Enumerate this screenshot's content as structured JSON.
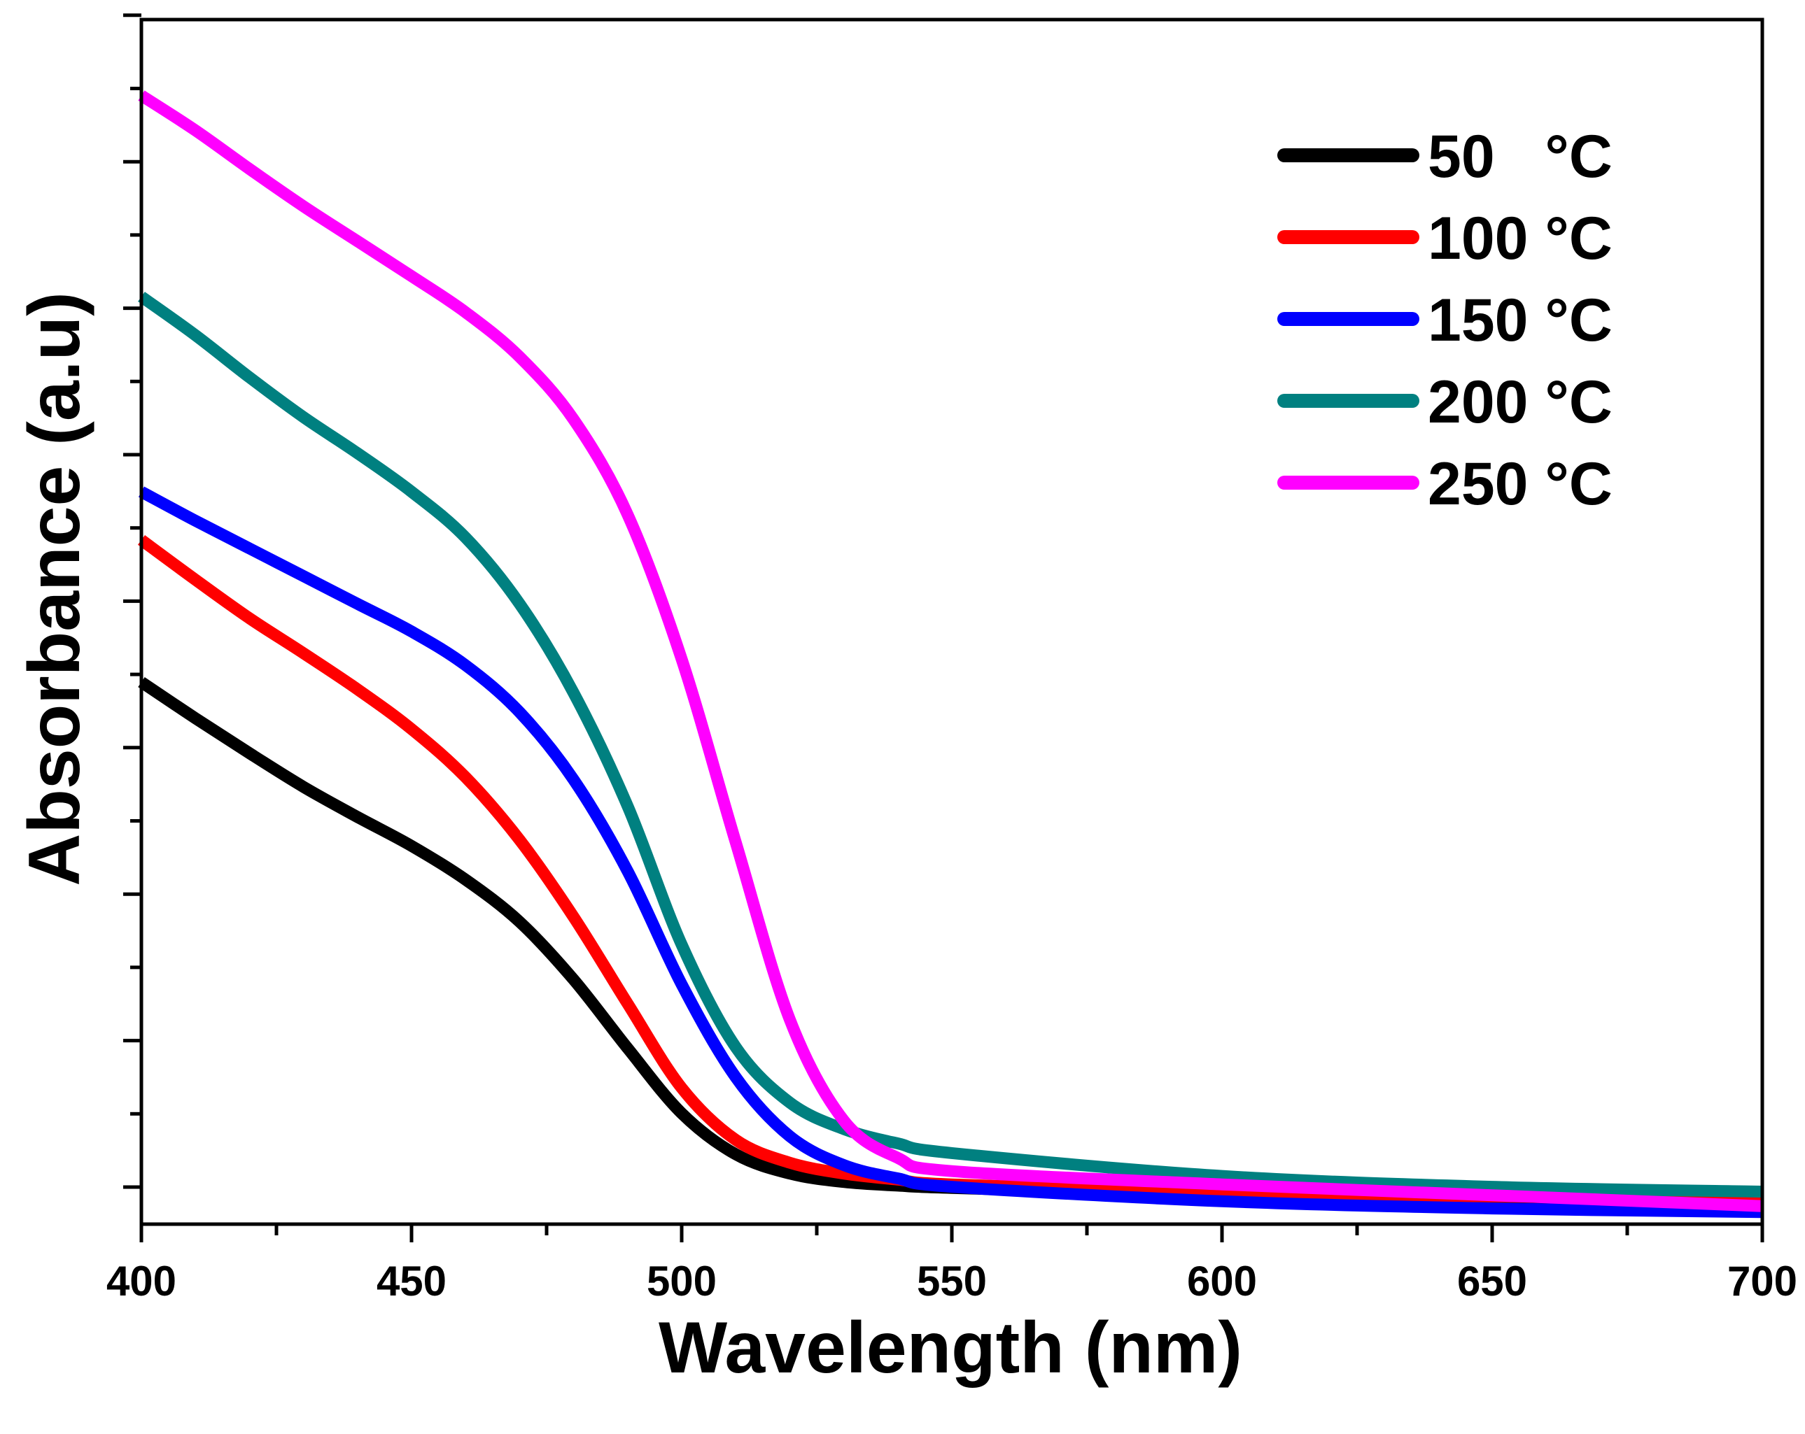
{
  "chart_data": {
    "type": "line",
    "xlabel": "Wavelength (nm)",
    "ylabel": "Absorbance (a.u)",
    "xlim": [
      400,
      700
    ],
    "ylim": [
      0,
      1
    ],
    "x_ticks": [
      "400",
      "450",
      "500",
      "550",
      "600",
      "650",
      "700"
    ],
    "y_tick_labels_shown": false,
    "legend_position": "top-right",
    "series": [
      {
        "name": "50",
        "legend_label": "50   °C",
        "color": "#000000",
        "points": [
          [
            400,
            0.45
          ],
          [
            410,
            0.42
          ],
          [
            420,
            0.391
          ],
          [
            430,
            0.363
          ],
          [
            440,
            0.338
          ],
          [
            450,
            0.314
          ],
          [
            460,
            0.286
          ],
          [
            470,
            0.251
          ],
          [
            480,
            0.203
          ],
          [
            490,
            0.146
          ],
          [
            500,
            0.092
          ],
          [
            510,
            0.058
          ],
          [
            520,
            0.042
          ],
          [
            530,
            0.035
          ],
          [
            540,
            0.032
          ],
          [
            550,
            0.03
          ],
          [
            600,
            0.024
          ],
          [
            650,
            0.021
          ],
          [
            700,
            0.02
          ]
        ]
      },
      {
        "name": "100",
        "legend_label": "100 °C",
        "color": "#ff0000",
        "points": [
          [
            400,
            0.568
          ],
          [
            410,
            0.535
          ],
          [
            420,
            0.503
          ],
          [
            430,
            0.474
          ],
          [
            440,
            0.444
          ],
          [
            450,
            0.411
          ],
          [
            460,
            0.371
          ],
          [
            470,
            0.319
          ],
          [
            480,
            0.255
          ],
          [
            490,
            0.183
          ],
          [
            500,
            0.113
          ],
          [
            510,
            0.07
          ],
          [
            520,
            0.051
          ],
          [
            530,
            0.042
          ],
          [
            540,
            0.037
          ],
          [
            550,
            0.033
          ],
          [
            600,
            0.026
          ],
          [
            650,
            0.023
          ],
          [
            700,
            0.021
          ]
        ]
      },
      {
        "name": "150",
        "legend_label": "150 °C",
        "color": "#0000ff",
        "points": [
          [
            400,
            0.608
          ],
          [
            410,
            0.584
          ],
          [
            420,
            0.561
          ],
          [
            430,
            0.538
          ],
          [
            440,
            0.515
          ],
          [
            450,
            0.492
          ],
          [
            460,
            0.464
          ],
          [
            470,
            0.425
          ],
          [
            480,
            0.369
          ],
          [
            490,
            0.293
          ],
          [
            500,
            0.199
          ],
          [
            510,
            0.122
          ],
          [
            520,
            0.073
          ],
          [
            530,
            0.049
          ],
          [
            540,
            0.038
          ],
          [
            550,
            0.031
          ],
          [
            600,
            0.019
          ],
          [
            650,
            0.013
          ],
          [
            700,
            0.01
          ]
        ]
      },
      {
        "name": "200",
        "legend_label": "200 °C",
        "color": "#008080",
        "points": [
          [
            400,
            0.77
          ],
          [
            410,
            0.738
          ],
          [
            420,
            0.703
          ],
          [
            430,
            0.67
          ],
          [
            440,
            0.64
          ],
          [
            450,
            0.608
          ],
          [
            460,
            0.57
          ],
          [
            470,
            0.515
          ],
          [
            480,
            0.441
          ],
          [
            490,
            0.347
          ],
          [
            500,
            0.232
          ],
          [
            510,
            0.147
          ],
          [
            520,
            0.101
          ],
          [
            530,
            0.079
          ],
          [
            540,
            0.067
          ],
          [
            550,
            0.059
          ],
          [
            600,
            0.04
          ],
          [
            650,
            0.031
          ],
          [
            700,
            0.027
          ]
        ]
      },
      {
        "name": "250",
        "legend_label": "250 °C",
        "color": "#ff00ff",
        "points": [
          [
            400,
            0.937
          ],
          [
            410,
            0.908
          ],
          [
            420,
            0.876
          ],
          [
            430,
            0.845
          ],
          [
            440,
            0.816
          ],
          [
            450,
            0.787
          ],
          [
            460,
            0.757
          ],
          [
            470,
            0.72
          ],
          [
            480,
            0.668
          ],
          [
            490,
            0.589
          ],
          [
            500,
            0.469
          ],
          [
            510,
            0.317
          ],
          [
            520,
            0.17
          ],
          [
            530,
            0.086
          ],
          [
            540,
            0.055
          ],
          [
            550,
            0.044
          ],
          [
            600,
            0.033
          ],
          [
            650,
            0.024
          ],
          [
            700,
            0.015
          ]
        ]
      }
    ]
  }
}
